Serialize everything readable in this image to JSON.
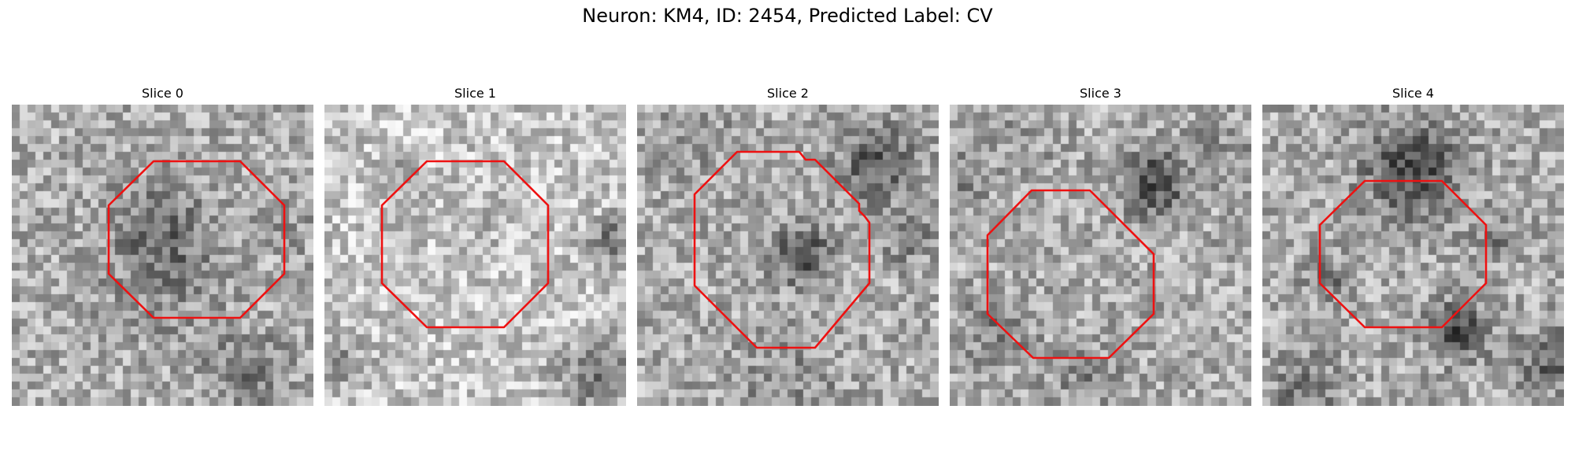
{
  "figure": {
    "title": "Neuron: KM4, ID: 2454, Predicted Label: CV",
    "contour_color": "#ee1111",
    "colormap": "gray"
  },
  "slices": [
    {
      "title": "Slice 0",
      "dark_center": true
    },
    {
      "title": "Slice 1",
      "dark_center": false
    },
    {
      "title": "Slice 2",
      "dark_center": false
    },
    {
      "title": "Slice 3",
      "dark_center": false
    },
    {
      "title": "Slice 4",
      "dark_center": false
    }
  ]
}
